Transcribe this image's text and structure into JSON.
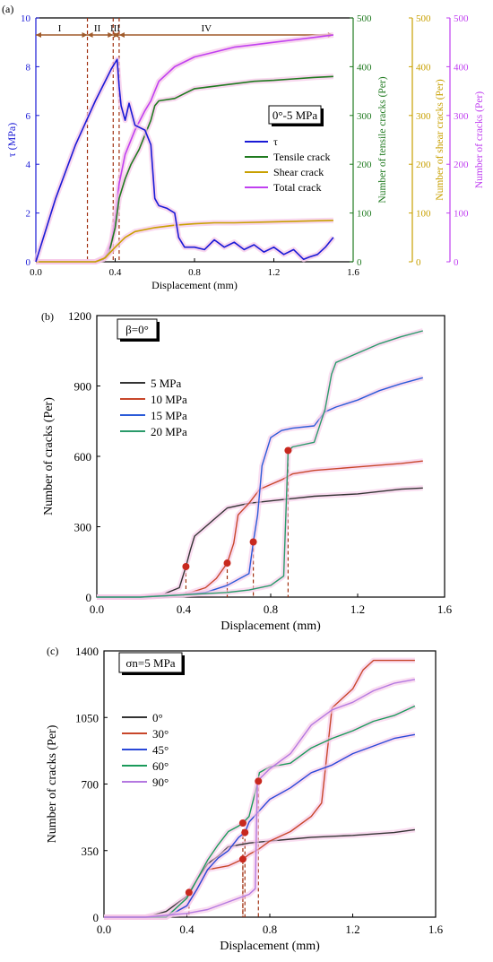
{
  "colors": {
    "axis": "#000000",
    "tau": "#1a1ad6",
    "tensile": "#1f7a1f",
    "shear": "#c8a000",
    "total": "#c040f0",
    "glow": "#f6c8e8",
    "marker": "#c8281e",
    "dash": "#a03010",
    "arrow": "#a05a2a",
    "s5": "#333333",
    "s10": "#c8462a",
    "s15": "#2a5ad8",
    "s20": "#2a9a6a",
    "a0": "#333333",
    "a30": "#c8462a",
    "a45": "#2a48d8",
    "a60": "#1a9a5a",
    "a90": "#b478e0"
  },
  "chart_data": [
    {
      "id": "a",
      "panel_label": "(a)",
      "type": "line",
      "xlabel": "Displacement (mm)",
      "xlim": [
        0,
        1.6
      ],
      "xticks": [
        "0.0",
        "0.4",
        "0.8",
        "1.2",
        "1.6"
      ],
      "box_label": "0°-5 MPa",
      "stages": [
        {
          "label": "I",
          "from": 0.0,
          "to": 0.26
        },
        {
          "label": "II",
          "from": 0.26,
          "to": 0.39
        },
        {
          "label": "III",
          "from": 0.39,
          "to": 0.42
        },
        {
          "label": "IV",
          "from": 0.42,
          "to": 1.6
        }
      ],
      "stage_lines": [
        0.26,
        0.39,
        0.42
      ],
      "axes": [
        {
          "key": "tau",
          "label": "τ (MPa)",
          "ylim": [
            0,
            10
          ],
          "ticks": [
            0,
            2,
            4,
            6,
            8,
            10
          ],
          "color": "tau"
        },
        {
          "key": "tensile",
          "label": "Number of tensile cracks (Per)",
          "ylim": [
            0,
            500
          ],
          "ticks": [
            0,
            100,
            200,
            300,
            400,
            500
          ],
          "color": "tensile"
        },
        {
          "key": "shear",
          "label": "Number of shear cracks (Per)",
          "ylim": [
            0,
            500
          ],
          "ticks": [
            0,
            100,
            200,
            300,
            400,
            500
          ],
          "color": "shear"
        },
        {
          "key": "total",
          "label": "Number of cracks (Per)",
          "ylim": [
            0,
            500
          ],
          "ticks": [
            0,
            100,
            200,
            300,
            400,
            500
          ],
          "color": "total"
        }
      ],
      "legend": [
        "τ",
        "Tensile crack",
        "Shear crack",
        "Total crack"
      ],
      "series": [
        {
          "name": "τ",
          "axis": "tau",
          "color": "tau",
          "x": [
            0,
            0.1,
            0.2,
            0.3,
            0.38,
            0.41,
            0.42,
            0.43,
            0.45,
            0.47,
            0.5,
            0.55,
            0.58,
            0.6,
            0.62,
            0.66,
            0.7,
            0.72,
            0.75,
            0.8,
            0.85,
            0.9,
            0.95,
            1.0,
            1.05,
            1.1,
            1.15,
            1.2,
            1.25,
            1.3,
            1.35,
            1.38,
            1.42,
            1.46,
            1.5
          ],
          "y": [
            0,
            2.6,
            4.8,
            6.6,
            7.9,
            8.3,
            7.2,
            6.4,
            5.8,
            6.5,
            5.6,
            5.4,
            4.8,
            2.6,
            2.3,
            2.2,
            2.0,
            1.0,
            0.6,
            0.6,
            0.5,
            0.9,
            0.6,
            0.8,
            0.5,
            0.7,
            0.4,
            0.6,
            0.3,
            0.5,
            0.1,
            0.2,
            0.3,
            0.6,
            1.0
          ]
        },
        {
          "name": "Tensile crack",
          "axis": "tensile",
          "color": "tensile",
          "x": [
            0,
            0.3,
            0.34,
            0.37,
            0.4,
            0.42,
            0.45,
            0.48,
            0.52,
            0.55,
            0.58,
            0.6,
            0.62,
            0.7,
            0.75,
            0.8,
            0.9,
            1.0,
            1.1,
            1.2,
            1.3,
            1.4,
            1.5
          ],
          "y": [
            0,
            0,
            5,
            20,
            70,
            130,
            170,
            200,
            230,
            260,
            290,
            320,
            330,
            335,
            345,
            355,
            360,
            365,
            370,
            372,
            375,
            378,
            380
          ]
        },
        {
          "name": "Shear crack",
          "axis": "shear",
          "color": "shear",
          "x": [
            0,
            0.3,
            0.35,
            0.4,
            0.45,
            0.5,
            0.6,
            0.7,
            0.8,
            0.9,
            1.0,
            1.2,
            1.4,
            1.5
          ],
          "y": [
            0,
            0,
            8,
            30,
            50,
            62,
            70,
            75,
            78,
            80,
            80,
            82,
            84,
            85
          ]
        },
        {
          "name": "Total crack",
          "axis": "total",
          "color": "total",
          "x": [
            0,
            0.3,
            0.35,
            0.38,
            0.4,
            0.42,
            0.45,
            0.5,
            0.55,
            0.58,
            0.6,
            0.62,
            0.7,
            0.8,
            0.9,
            1.0,
            1.1,
            1.2,
            1.3,
            1.4,
            1.5
          ],
          "y": [
            0,
            0,
            10,
            40,
            90,
            160,
            220,
            270,
            310,
            330,
            350,
            370,
            400,
            420,
            430,
            440,
            445,
            450,
            455,
            460,
            465
          ]
        }
      ]
    },
    {
      "id": "b",
      "panel_label": "(b)",
      "type": "line",
      "xlabel": "Displacement (mm)",
      "ylabel": "Number of cracks (Per)",
      "xlim": [
        0,
        1.6
      ],
      "ylim": [
        0,
        1200
      ],
      "xticks": [
        "0.0",
        "0.4",
        "0.8",
        "1.2",
        "1.6"
      ],
      "yticks": [
        "0",
        "300",
        "600",
        "900",
        "1200"
      ],
      "box_label": "β=0°",
      "legend": [
        "5 MPa",
        "10 MPa",
        "15 MPa",
        "20 MPa"
      ],
      "series": [
        {
          "name": "5 MPa",
          "color": "s5",
          "x": [
            0,
            0.2,
            0.3,
            0.38,
            0.41,
            0.43,
            0.45,
            0.5,
            0.55,
            0.6,
            0.7,
            0.8,
            0.9,
            1.0,
            1.2,
            1.4,
            1.5
          ],
          "y": [
            0,
            0,
            10,
            40,
            130,
            200,
            260,
            300,
            340,
            380,
            400,
            410,
            420,
            430,
            440,
            460,
            465
          ]
        },
        {
          "name": "10 MPa",
          "color": "s10",
          "x": [
            0,
            0.2,
            0.4,
            0.5,
            0.55,
            0.6,
            0.63,
            0.65,
            0.7,
            0.75,
            0.8,
            0.85,
            0.9,
            1.0,
            1.2,
            1.4,
            1.5
          ],
          "y": [
            0,
            0,
            10,
            40,
            80,
            145,
            230,
            350,
            400,
            460,
            480,
            500,
            525,
            540,
            555,
            570,
            580
          ]
        },
        {
          "name": "15 MPa",
          "color": "s15",
          "x": [
            0,
            0.2,
            0.4,
            0.5,
            0.6,
            0.7,
            0.72,
            0.74,
            0.76,
            0.8,
            0.85,
            0.9,
            1.0,
            1.05,
            1.1,
            1.2,
            1.3,
            1.4,
            1.5
          ],
          "y": [
            0,
            0,
            10,
            20,
            50,
            100,
            235,
            350,
            560,
            680,
            710,
            720,
            730,
            790,
            810,
            840,
            880,
            910,
            935
          ]
        },
        {
          "name": "20 MPa",
          "color": "s20",
          "x": [
            0,
            0.2,
            0.4,
            0.6,
            0.7,
            0.8,
            0.86,
            0.88,
            0.9,
            1.0,
            1.05,
            1.08,
            1.1,
            1.2,
            1.3,
            1.4,
            1.5
          ],
          "y": [
            0,
            0,
            10,
            20,
            30,
            50,
            90,
            620,
            640,
            660,
            800,
            950,
            1000,
            1040,
            1080,
            1110,
            1135
          ]
        }
      ],
      "markers": [
        {
          "x": 0.41,
          "y": 130
        },
        {
          "x": 0.6,
          "y": 145
        },
        {
          "x": 0.72,
          "y": 235
        },
        {
          "x": 0.88,
          "y": 625
        }
      ]
    },
    {
      "id": "c",
      "panel_label": "(c)",
      "type": "line",
      "xlabel": "Displacement (mm)",
      "ylabel": "Number of cracks (Per)",
      "xlim": [
        0,
        1.6
      ],
      "ylim": [
        0,
        1400
      ],
      "xticks": [
        "0.0",
        "0.4",
        "0.8",
        "1.2",
        "1.6"
      ],
      "yticks": [
        "0",
        "350",
        "700",
        "1050",
        "1400"
      ],
      "box_label": "σn=5 MPa",
      "legend": [
        "0°",
        "30°",
        "45°",
        "60°",
        "90°"
      ],
      "series": [
        {
          "name": "0°",
          "color": "a0",
          "x": [
            0,
            0.2,
            0.3,
            0.4,
            0.45,
            0.5,
            0.55,
            0.6,
            0.7,
            0.8,
            0.9,
            1.0,
            1.2,
            1.4,
            1.5
          ],
          "y": [
            0,
            0,
            30,
            110,
            200,
            280,
            320,
            370,
            390,
            400,
            410,
            420,
            430,
            445,
            460
          ]
        },
        {
          "name": "30°",
          "color": "a30",
          "x": [
            0,
            0.3,
            0.4,
            0.45,
            0.5,
            0.55,
            0.6,
            0.67,
            0.7,
            0.75,
            0.8,
            0.9,
            1.0,
            1.05,
            1.08,
            1.1,
            1.15,
            1.2,
            1.25,
            1.3,
            1.5
          ],
          "y": [
            0,
            0,
            60,
            150,
            250,
            260,
            270,
            305,
            330,
            360,
            400,
            450,
            530,
            600,
            900,
            1100,
            1150,
            1200,
            1300,
            1350,
            1350
          ]
        },
        {
          "name": "45°",
          "color": "a45",
          "x": [
            0,
            0.3,
            0.4,
            0.45,
            0.5,
            0.55,
            0.6,
            0.65,
            0.68,
            0.7,
            0.75,
            0.8,
            0.85,
            0.9,
            1.0,
            1.1,
            1.2,
            1.3,
            1.4,
            1.5
          ],
          "y": [
            0,
            0,
            60,
            150,
            250,
            310,
            350,
            420,
            445,
            500,
            560,
            620,
            650,
            680,
            760,
            800,
            860,
            900,
            940,
            960
          ]
        },
        {
          "name": "60°",
          "color": "a60",
          "x": [
            0,
            0.3,
            0.4,
            0.45,
            0.5,
            0.55,
            0.6,
            0.65,
            0.67,
            0.7,
            0.74,
            0.75,
            0.8,
            0.9,
            1.0,
            1.1,
            1.2,
            1.3,
            1.4,
            1.5
          ],
          "y": [
            0,
            0,
            100,
            200,
            300,
            380,
            450,
            480,
            495,
            530,
            700,
            760,
            790,
            810,
            890,
            940,
            980,
            1030,
            1060,
            1110
          ]
        },
        {
          "name": "90°",
          "color": "a90",
          "x": [
            0,
            0.2,
            0.4,
            0.5,
            0.6,
            0.7,
            0.73,
            0.74,
            0.8,
            0.9,
            1.0,
            1.1,
            1.2,
            1.3,
            1.4,
            1.5
          ],
          "y": [
            0,
            0,
            20,
            40,
            80,
            120,
            150,
            715,
            780,
            860,
            1010,
            1090,
            1130,
            1190,
            1230,
            1250
          ]
        }
      ],
      "markers": [
        {
          "x": 0.41,
          "y": 130
        },
        {
          "x": 0.67,
          "y": 305
        },
        {
          "x": 0.68,
          "y": 445
        },
        {
          "x": 0.67,
          "y": 495
        },
        {
          "x": 0.745,
          "y": 715
        }
      ]
    }
  ]
}
